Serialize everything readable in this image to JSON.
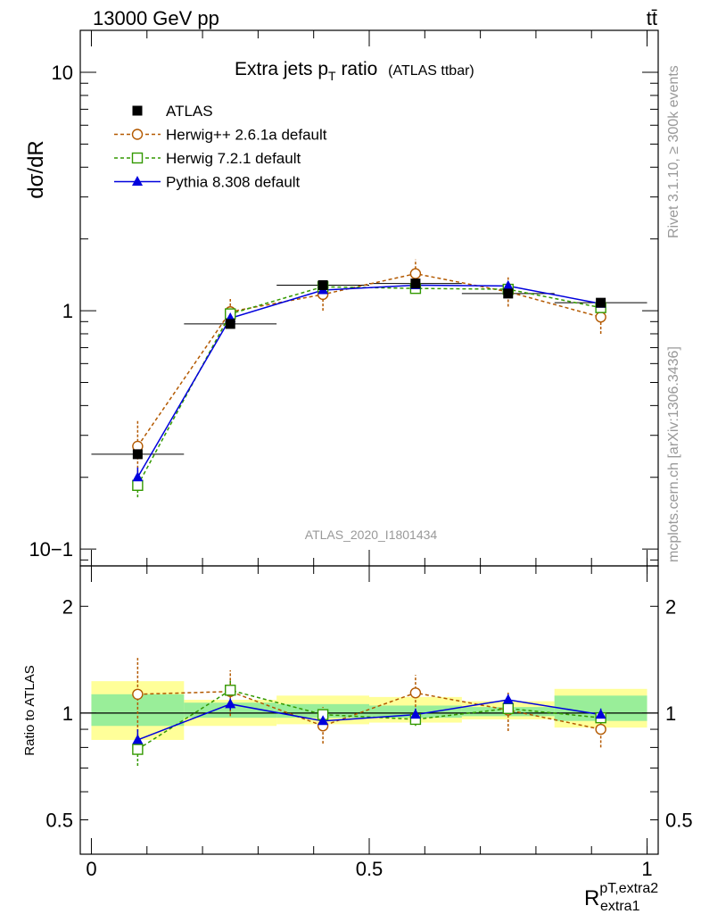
{
  "header": {
    "left": "13000 GeV pp",
    "right": "tt̄"
  },
  "side_labels": {
    "rivet": "Rivet 3.1.10, ≥ 300k events",
    "mcplots": "mcplots.cern.ch [arXiv:1306.3436]"
  },
  "chart_data": [
    {
      "type": "line",
      "title": "Extra jets p",
      "title_sub": "T",
      "title_tail": " ratio",
      "title_small": "(ATLAS ttbar)",
      "watermark": "ATLAS_2020_I1801434",
      "ylabel": "dσ/dR",
      "yscale": "log",
      "ylim": [
        0.085,
        15
      ],
      "xlim": [
        -0.02,
        1.02
      ],
      "y_ticks": [
        {
          "value": 0.1,
          "label": "10−1"
        },
        {
          "value": 1,
          "label": "1"
        },
        {
          "value": 10,
          "label": "10"
        }
      ],
      "legend_position": "top-left",
      "series": [
        {
          "name": "ATLAS",
          "color": "#000000",
          "marker": "filled-square",
          "x": [
            0.0833,
            0.25,
            0.4167,
            0.5833,
            0.75,
            0.9167
          ],
          "y": [
            0.25,
            0.88,
            1.28,
            1.3,
            1.18,
            1.08
          ],
          "xerr": [
            0.0833,
            0.0833,
            0.0833,
            0.0833,
            0.0833,
            0.0833
          ]
        },
        {
          "name": "Herwig++ 2.6.1a default",
          "color": "#b35900",
          "marker": "open-circle",
          "dashed": true,
          "x": [
            0.0833,
            0.25,
            0.4167,
            0.5833,
            0.75,
            0.9167
          ],
          "y": [
            0.27,
            0.99,
            1.17,
            1.43,
            1.2,
            0.94
          ],
          "yerr_low": [
            0.2,
            0.88,
            1.0,
            1.26,
            1.04,
            0.8
          ],
          "yerr_high": [
            0.35,
            1.12,
            1.35,
            1.64,
            1.38,
            1.09
          ]
        },
        {
          "name": "Herwig 7.2.1 default",
          "color": "#339900",
          "marker": "open-square",
          "dashed": true,
          "x": [
            0.0833,
            0.25,
            0.4167,
            0.5833,
            0.75,
            0.9167
          ],
          "y": [
            0.185,
            0.97,
            1.26,
            1.24,
            1.23,
            1.03
          ],
          "yerr_low": [
            0.165,
            0.92,
            1.2,
            1.18,
            1.17,
            0.99
          ],
          "yerr_high": [
            0.205,
            1.02,
            1.32,
            1.3,
            1.29,
            1.07
          ]
        },
        {
          "name": "Pythia 8.308 default",
          "color": "#0000dd",
          "marker": "filled-triangle",
          "dashed": false,
          "x": [
            0.0833,
            0.25,
            0.4167,
            0.5833,
            0.75,
            0.9167
          ],
          "y": [
            0.2,
            0.93,
            1.22,
            1.28,
            1.27,
            1.07
          ],
          "yerr_low": [
            0.18,
            0.89,
            1.17,
            1.23,
            1.22,
            1.03
          ],
          "yerr_high": [
            0.22,
            0.97,
            1.27,
            1.33,
            1.32,
            1.11
          ]
        }
      ]
    },
    {
      "type": "line",
      "ylabel": "Ratio to ATLAS",
      "xlabel": "R",
      "xlabel_sup": "pT,extra2",
      "xlabel_sub": "extra1",
      "yscale": "log",
      "ylim": [
        0.4,
        2.6
      ],
      "xlim": [
        -0.02,
        1.02
      ],
      "x_ticks": [
        {
          "value": 0,
          "label": "0"
        },
        {
          "value": 0.5,
          "label": "0.5"
        },
        {
          "value": 1,
          "label": "1"
        }
      ],
      "y_ticks": [
        {
          "value": 0.5,
          "label": "0.5"
        },
        {
          "value": 1,
          "label": "1"
        },
        {
          "value": 2,
          "label": "2"
        }
      ],
      "bands": [
        {
          "x0": 0.0,
          "x1": 0.1667,
          "yellow": [
            0.84,
            1.23
          ],
          "green": [
            0.92,
            1.13
          ]
        },
        {
          "x0": 0.1667,
          "x1": 0.3333,
          "yellow": [
            0.92,
            1.09
          ],
          "green": [
            0.97,
            1.07
          ]
        },
        {
          "x0": 0.3333,
          "x1": 0.5,
          "yellow": [
            0.93,
            1.12
          ],
          "green": [
            0.97,
            1.06
          ]
        },
        {
          "x0": 0.5,
          "x1": 0.6667,
          "yellow": [
            0.94,
            1.11
          ],
          "green": [
            0.97,
            1.05
          ]
        },
        {
          "x0": 0.6667,
          "x1": 0.8333,
          "yellow": [
            0.96,
            1.08
          ],
          "green": [
            0.98,
            1.04
          ]
        },
        {
          "x0": 0.8333,
          "x1": 1.0,
          "yellow": [
            0.91,
            1.17
          ],
          "green": [
            0.95,
            1.12
          ]
        }
      ],
      "series": [
        {
          "name": "Herwig++ 2.6.1a default",
          "color": "#b35900",
          "marker": "open-circle",
          "dashed": true,
          "x": [
            0.0833,
            0.25,
            0.4167,
            0.5833,
            0.75,
            0.9167
          ],
          "y": [
            1.13,
            1.15,
            0.92,
            1.14,
            1.02,
            0.9
          ],
          "yerr_low": [
            0.86,
            0.98,
            0.82,
            1.01,
            0.89,
            0.8
          ],
          "yerr_high": [
            1.43,
            1.32,
            1.04,
            1.28,
            1.15,
            1.0
          ]
        },
        {
          "name": "Herwig 7.2.1 default",
          "color": "#339900",
          "marker": "open-square",
          "dashed": true,
          "x": [
            0.0833,
            0.25,
            0.4167,
            0.5833,
            0.75,
            0.9167
          ],
          "y": [
            0.79,
            1.16,
            0.99,
            0.96,
            1.03,
            0.97
          ],
          "yerr_low": [
            0.71,
            1.08,
            0.95,
            0.92,
            0.99,
            0.93
          ],
          "yerr_high": [
            0.87,
            1.24,
            1.03,
            1.0,
            1.07,
            1.01
          ]
        },
        {
          "name": "Pythia 8.308 default",
          "color": "#0000dd",
          "marker": "filled-triangle",
          "dashed": false,
          "x": [
            0.0833,
            0.25,
            0.4167,
            0.5833,
            0.75,
            0.9167
          ],
          "y": [
            0.84,
            1.06,
            0.95,
            0.99,
            1.09,
            0.99
          ],
          "yerr_low": [
            0.78,
            1.02,
            0.91,
            0.95,
            1.05,
            0.95
          ],
          "yerr_high": [
            0.9,
            1.1,
            0.99,
            1.03,
            1.13,
            1.03
          ]
        }
      ]
    }
  ]
}
